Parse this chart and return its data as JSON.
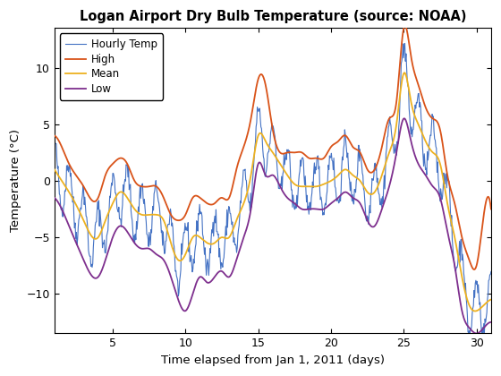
{
  "title": "Logan Airport Dry Bulb Temperature (source: NOAA)",
  "xlabel": "Time elapsed from Jan 1, 2011 (days)",
  "ylabel": "Temperature (°C)",
  "xlim": [
    1,
    31
  ],
  "ylim": [
    -13.5,
    13.5
  ],
  "xticks": [
    5,
    10,
    15,
    20,
    25,
    30
  ],
  "yticks": [
    -10,
    -5,
    0,
    5,
    10
  ],
  "legend_labels": [
    "Hourly Temp",
    "High",
    "Mean",
    "Low"
  ],
  "colors": {
    "hourly": "#4472C4",
    "high": "#D95319",
    "mean": "#EDB120",
    "low": "#7E2F8E"
  },
  "line_widths": {
    "hourly": 0.8,
    "high": 1.3,
    "mean": 1.3,
    "low": 1.3
  },
  "mean_knots_x": [
    1,
    1.5,
    2,
    3,
    4,
    4.5,
    5,
    5.5,
    6,
    6.5,
    7,
    7.5,
    8,
    8.5,
    9,
    9.5,
    10,
    10.5,
    11,
    11.5,
    12,
    12.5,
    13,
    13.5,
    14,
    14.5,
    15,
    15.5,
    16,
    16.5,
    17,
    17.5,
    18,
    18.5,
    19,
    19.5,
    20,
    20.5,
    21,
    21.5,
    22,
    22.5,
    23,
    23.5,
    24,
    24.5,
    25,
    25.5,
    26,
    26.5,
    27,
    27.5,
    28,
    28.5,
    29,
    29.5,
    30,
    30.5,
    31
  ],
  "mean_knots_y": [
    1.0,
    0.0,
    -1.0,
    -3.5,
    -5.0,
    -3.5,
    -2.0,
    -1.0,
    -1.5,
    -2.5,
    -3.0,
    -3.0,
    -3.0,
    -3.5,
    -5.5,
    -7.0,
    -6.5,
    -5.0,
    -5.0,
    -5.5,
    -5.5,
    -5.0,
    -5.0,
    -3.5,
    -2.0,
    0.5,
    4.0,
    3.5,
    2.5,
    1.5,
    0.5,
    -0.3,
    -0.5,
    -0.5,
    -0.5,
    -0.3,
    0.0,
    0.5,
    1.0,
    0.5,
    0.0,
    -1.0,
    -1.0,
    0.5,
    2.5,
    5.0,
    9.5,
    7.0,
    5.0,
    3.5,
    2.5,
    1.5,
    -2.0,
    -5.0,
    -8.5,
    -11.0,
    -11.5,
    -11.0,
    -10.5
  ],
  "high_knots_y": [
    4.0,
    3.0,
    1.5,
    -0.5,
    -1.5,
    0.5,
    1.5,
    2.0,
    1.5,
    0.0,
    -0.5,
    -0.5,
    -0.5,
    -1.5,
    -3.0,
    -3.5,
    -3.0,
    -1.5,
    -1.5,
    -2.0,
    -2.0,
    -1.5,
    -1.5,
    1.0,
    3.0,
    5.5,
    9.0,
    8.5,
    4.5,
    2.5,
    2.5,
    2.5,
    2.5,
    2.0,
    2.0,
    2.0,
    3.0,
    3.5,
    4.0,
    3.0,
    2.5,
    1.0,
    1.0,
    3.0,
    5.5,
    7.0,
    13.5,
    11.0,
    8.5,
    6.5,
    5.5,
    4.5,
    0.5,
    -2.0,
    -5.0,
    -7.0,
    -7.5,
    -3.0,
    -2.5
  ],
  "low_knots_y": [
    -1.5,
    -2.5,
    -4.0,
    -7.0,
    -8.5,
    -7.0,
    -5.0,
    -4.0,
    -4.5,
    -5.5,
    -6.0,
    -6.0,
    -6.5,
    -7.0,
    -8.5,
    -10.5,
    -11.5,
    -10.0,
    -8.5,
    -9.0,
    -8.5,
    -8.0,
    -8.5,
    -7.0,
    -5.0,
    -2.5,
    1.5,
    0.5,
    0.5,
    -0.5,
    -1.5,
    -2.0,
    -2.5,
    -2.5,
    -2.5,
    -2.5,
    -2.0,
    -1.5,
    -1.0,
    -1.5,
    -2.0,
    -3.5,
    -4.0,
    -2.5,
    -0.5,
    2.5,
    5.5,
    3.5,
    1.5,
    0.5,
    -0.5,
    -1.5,
    -4.5,
    -7.5,
    -11.5,
    -13.0,
    -13.5,
    -13.0,
    -12.5
  ]
}
